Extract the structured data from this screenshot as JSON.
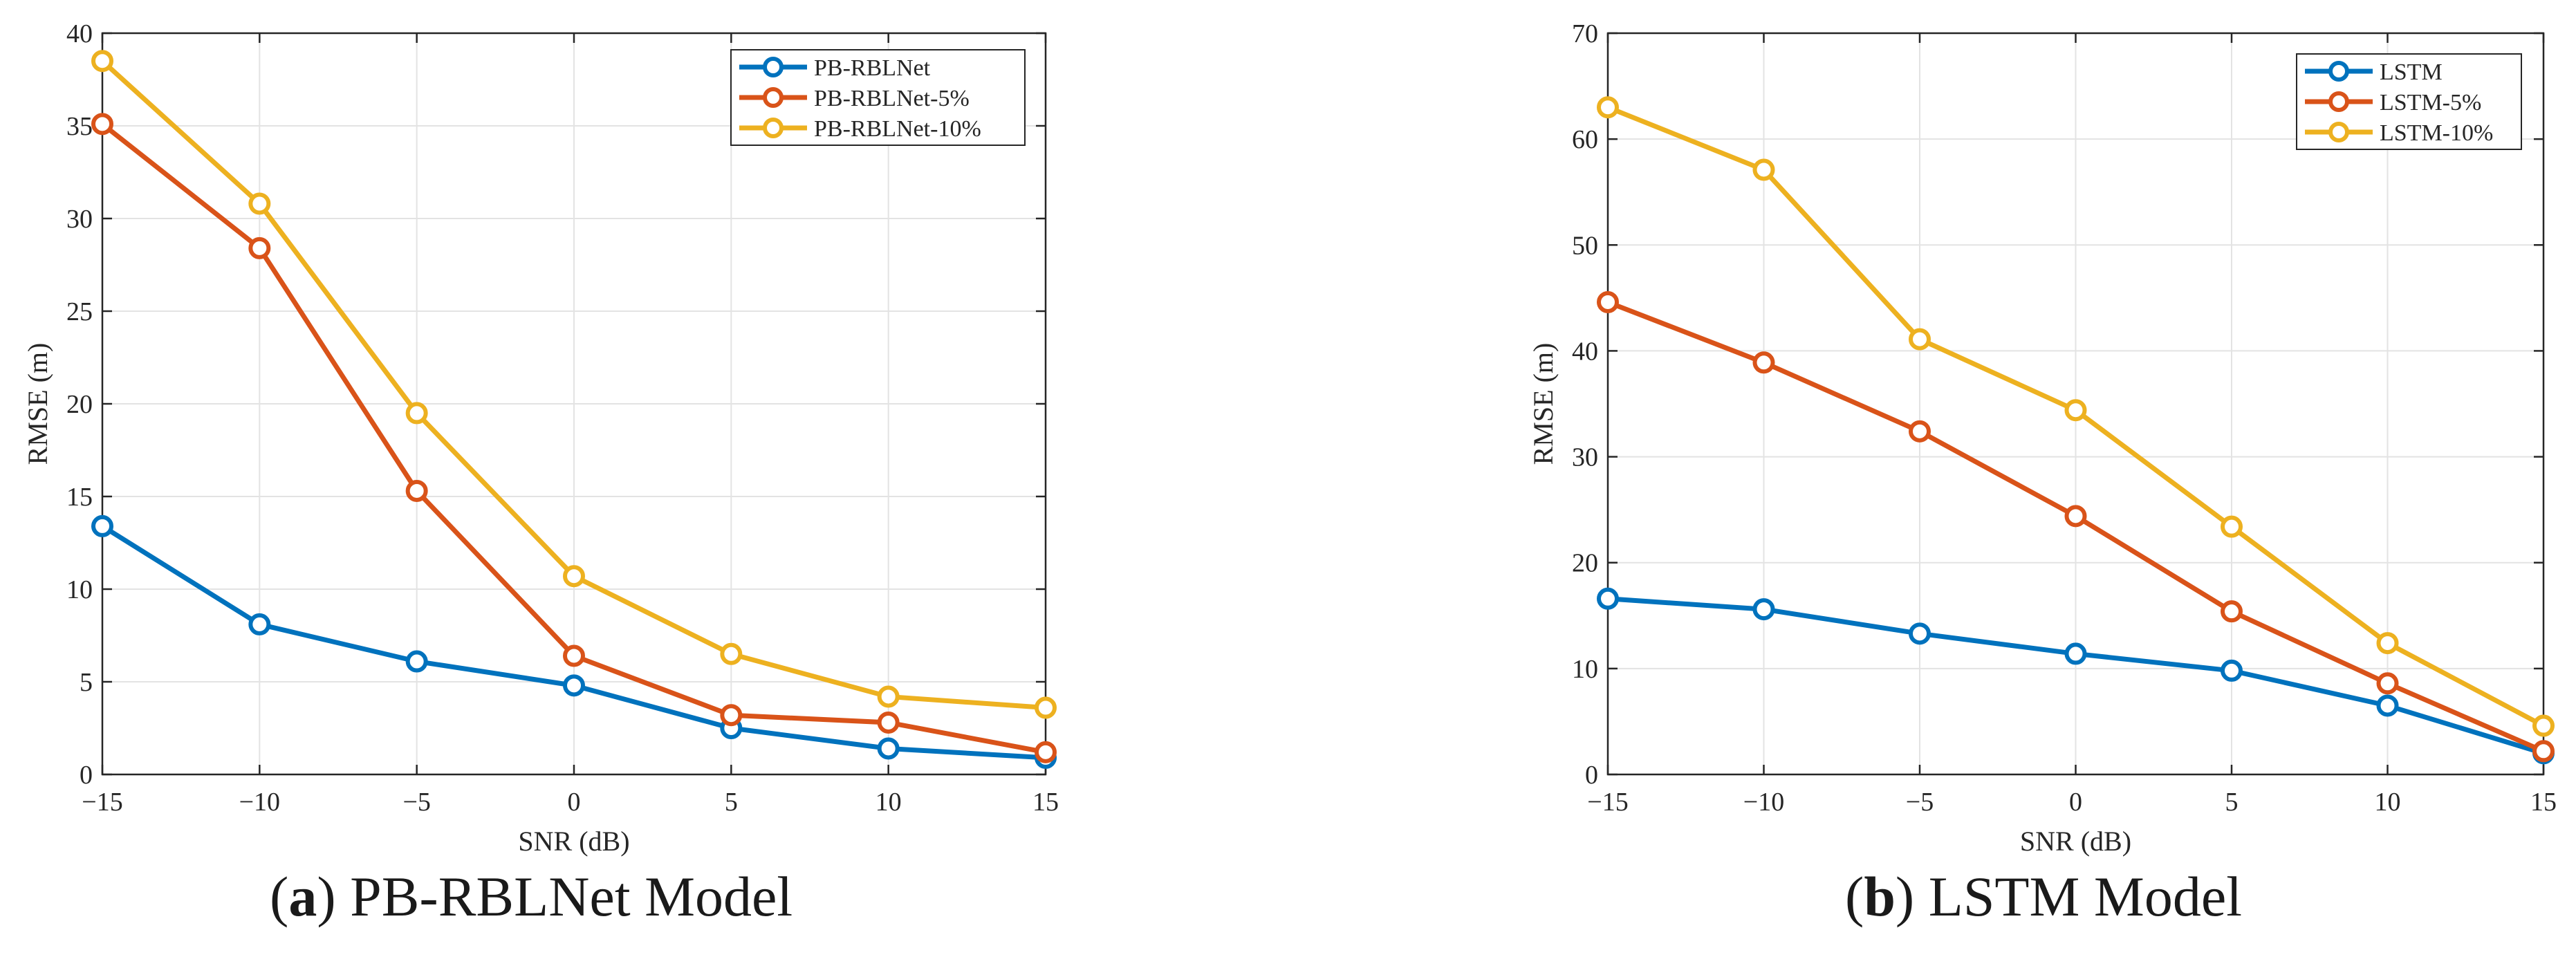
{
  "chart_data": [
    {
      "type": "line",
      "caption": {
        "letter": "a",
        "text": " PB-RBLNet Model"
      },
      "xlabel": "SNR (dB)",
      "ylabel": "RMSE (m)",
      "x": [
        -15,
        -10,
        -5,
        0,
        5,
        10,
        15
      ],
      "xlim": [
        -15,
        15
      ],
      "ylim": [
        0,
        40
      ],
      "xticks": [
        -15,
        -10,
        -5,
        0,
        5,
        10,
        15
      ],
      "xtick_labels": [
        "−15",
        "−10",
        "−5",
        "0",
        "5",
        "10",
        "15"
      ],
      "yticks": [
        0,
        5,
        10,
        15,
        20,
        25,
        30,
        35,
        40
      ],
      "grid": true,
      "legend_position": "top-right",
      "series": [
        {
          "name": "PB-RBLNet",
          "color": "#0072BD",
          "values": [
            13.4,
            8.1,
            6.1,
            4.8,
            2.5,
            1.4,
            0.9
          ]
        },
        {
          "name": "PB-RBLNet-5%",
          "color": "#D95319",
          "values": [
            35.1,
            28.4,
            15.3,
            6.4,
            3.2,
            2.8,
            1.2
          ]
        },
        {
          "name": "PB-RBLNet-10%",
          "color": "#EDB120",
          "values": [
            38.5,
            30.8,
            19.5,
            10.7,
            6.5,
            4.2,
            3.6
          ]
        }
      ]
    },
    {
      "type": "line",
      "caption": {
        "letter": "b",
        "text": " LSTM Model"
      },
      "xlabel": "SNR (dB)",
      "ylabel": "RMSE (m)",
      "x": [
        -15,
        -10,
        -5,
        0,
        5,
        10,
        15
      ],
      "xlim": [
        -15,
        15
      ],
      "ylim": [
        0,
        70
      ],
      "xticks": [
        -15,
        -10,
        -5,
        0,
        5,
        10,
        15
      ],
      "xtick_labels": [
        "−15",
        "−10",
        "−5",
        "0",
        "5",
        "10",
        "15"
      ],
      "yticks": [
        0,
        10,
        20,
        30,
        40,
        50,
        60,
        70
      ],
      "grid": true,
      "legend_position": "top-right",
      "series": [
        {
          "name": "LSTM",
          "color": "#0072BD",
          "values": [
            16.6,
            15.6,
            13.3,
            11.4,
            9.8,
            6.5,
            2.0
          ]
        },
        {
          "name": "LSTM-5%",
          "color": "#D95319",
          "values": [
            44.6,
            38.9,
            32.4,
            24.4,
            15.4,
            8.6,
            2.2
          ]
        },
        {
          "name": "LSTM-10%",
          "color": "#EDB120",
          "values": [
            63.0,
            57.1,
            41.1,
            34.4,
            23.4,
            12.4,
            4.6
          ]
        }
      ]
    }
  ]
}
